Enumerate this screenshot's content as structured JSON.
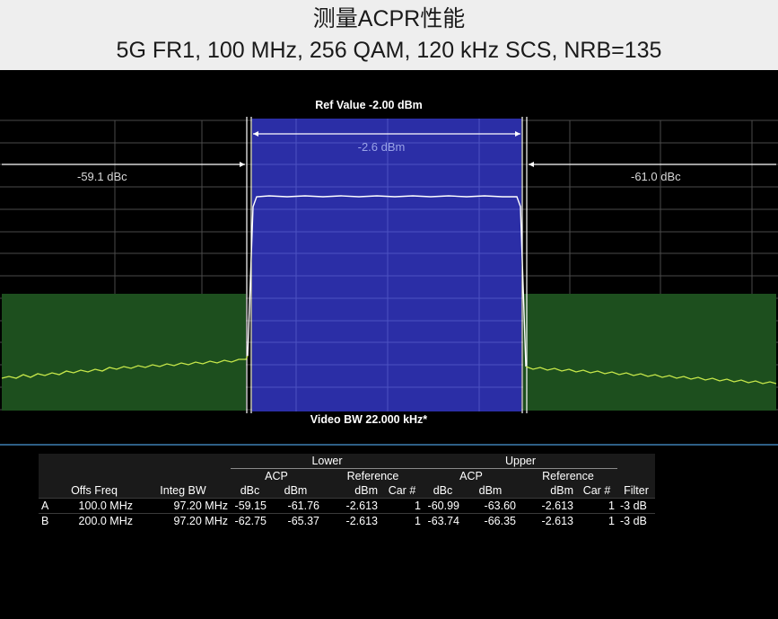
{
  "title": {
    "line1": "测量ACPR性能",
    "line2": "5G FR1, 100 MHz, 256 QAM, 120 kHz SCS, NRB=135"
  },
  "display": {
    "ref_value": "Ref Value -2.00 dBm",
    "video_bw": "Video BW 22.000 kHz*",
    "main_channel_power": "-2.6  dBm",
    "lower_acp": "-59.1 dBc",
    "upper_acp": "-61.0 dBc"
  },
  "colors": {
    "main_channel": "#2b2ea6",
    "adjacent_channel": "#1d4f1e",
    "trace": "#c7e84a",
    "marker_lines": "#ffffff",
    "separator": "#2e5f86"
  },
  "table": {
    "group_headers": {
      "lower": "Lower",
      "upper": "Upper"
    },
    "sub_headers": {
      "acp": "ACP",
      "reference": "Reference"
    },
    "columns": [
      "",
      "Offs Freq",
      "Integ BW",
      "dBc",
      "dBm",
      "dBm",
      "Car #",
      "dBc",
      "dBm",
      "dBm",
      "Car #",
      "Filter"
    ],
    "rows": [
      [
        "A",
        "100.0 MHz",
        "97.20 MHz",
        "-59.15",
        "-61.76",
        "-2.613",
        "1",
        "-60.99",
        "-63.60",
        "-2.613",
        "1",
        "-3 dB"
      ],
      [
        "B",
        "200.0 MHz",
        "97.20 MHz",
        "-62.75",
        "-65.37",
        "-2.613",
        "1",
        "-63.74",
        "-66.35",
        "-2.613",
        "1",
        "-3 dB"
      ]
    ]
  }
}
